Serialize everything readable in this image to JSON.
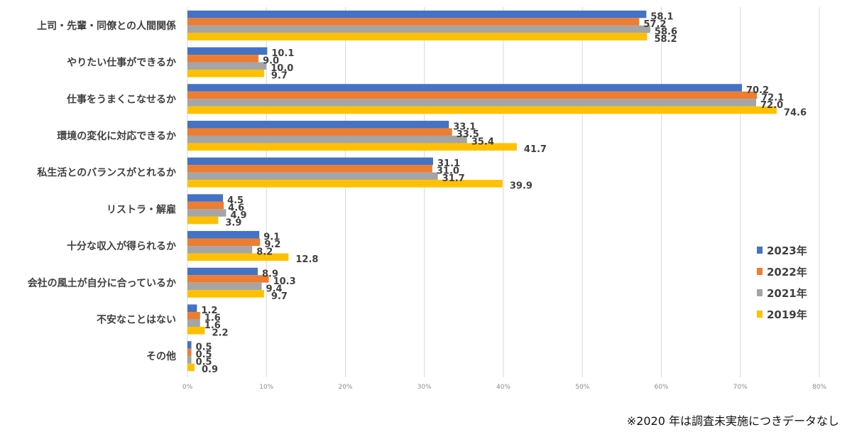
{
  "chart_data": {
    "type": "bar",
    "orientation": "horizontal",
    "title": "",
    "xlabel": "",
    "ylabel": "",
    "xlim": [
      0,
      80
    ],
    "x_ticks": [
      "0%",
      "10%",
      "20%",
      "30%",
      "40%",
      "50%",
      "60%",
      "70%",
      "80%"
    ],
    "grid": true,
    "legend_position": "right",
    "categories": [
      "上司・先輩・同僚との人間関係",
      "やりたい仕事ができるか",
      "仕事をうまくこなせるか",
      "環境の変化に対応できるか",
      "私生活とのバランスがとれるか",
      "リストラ・解雇",
      "十分な収入が得られるか",
      "会社の風土が自分に合っているか",
      "不安なことはない",
      "その他"
    ],
    "series": [
      {
        "name": "2023年",
        "color": "#4472c4",
        "values": [
          58.1,
          10.1,
          70.2,
          33.1,
          31.1,
          4.5,
          9.1,
          8.9,
          1.2,
          0.5
        ]
      },
      {
        "name": "2022年",
        "color": "#ed7d31",
        "values": [
          57.2,
          9.0,
          72.1,
          33.5,
          31.0,
          4.6,
          9.2,
          10.3,
          1.6,
          0.5
        ]
      },
      {
        "name": "2021年",
        "color": "#a5a5a5",
        "values": [
          58.6,
          10.0,
          72.0,
          35.4,
          31.7,
          4.9,
          8.2,
          9.4,
          1.6,
          0.5
        ]
      },
      {
        "name": "2019年",
        "color": "#ffc000",
        "values": [
          58.2,
          9.7,
          74.6,
          41.7,
          39.9,
          3.9,
          12.8,
          9.7,
          2.2,
          0.9
        ]
      }
    ],
    "value_format": "0.0"
  },
  "footnote": "※2020 年は調査未実施につきデータなし"
}
